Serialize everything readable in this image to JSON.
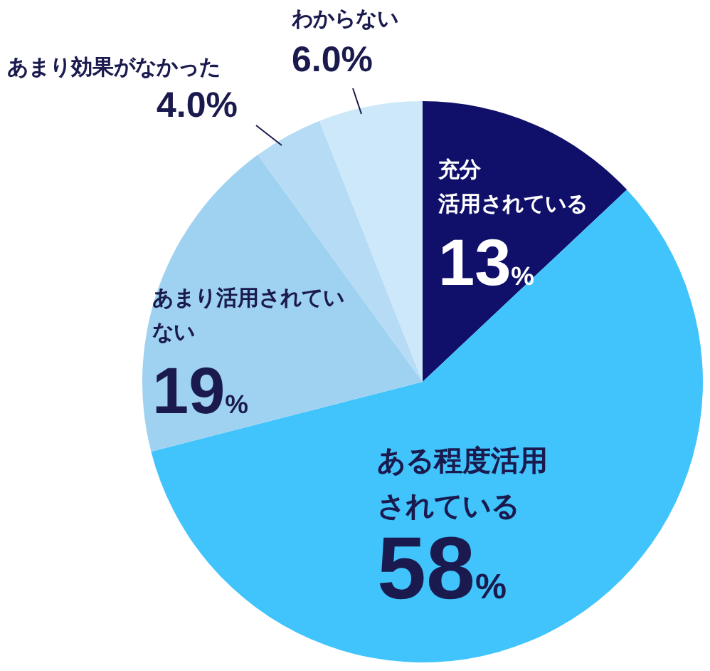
{
  "chart_data": {
    "type": "pie",
    "categories": [
      "充分活用されている",
      "ある程度活用されている",
      "あまり活用されていない",
      "あまり効果がなかった",
      "わからない"
    ],
    "values": [
      13,
      58,
      19,
      4,
      6
    ],
    "colors": [
      "#10106a",
      "#41c4fc",
      "#9fd2f1",
      "#b6dcf5",
      "#cde8f9"
    ],
    "value_labels": [
      "13%",
      "58%",
      "19%",
      "4.0%",
      "6.0%"
    ],
    "legend": false
  }
}
